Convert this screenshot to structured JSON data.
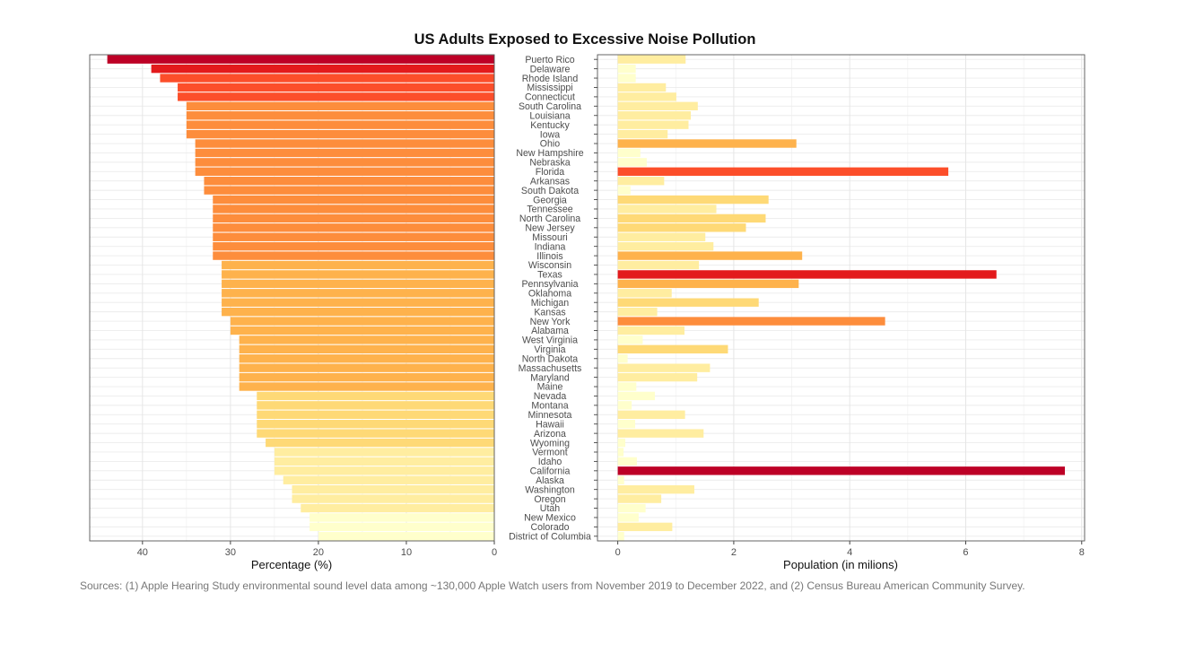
{
  "chart_data": {
    "title": "US Adults Exposed to Excessive Noise Pollution",
    "caption": "Sources: (1) Apple Hearing Study environmental sound level data among ~130,000 Apple Watch users from November 2019 to December 2022, and (2) Census Bureau American Community Survey.",
    "colors": [
      "#ffffcc",
      "#ffeda0",
      "#fed976",
      "#feb24c",
      "#fd8d3c",
      "#fc4e2a",
      "#e31a1c",
      "#bd0026"
    ],
    "categories": [
      "Puerto Rico",
      "Delaware",
      "Rhode Island",
      "Mississippi",
      "Connecticut",
      "South Carolina",
      "Louisiana",
      "Kentucky",
      "Iowa",
      "Ohio",
      "New Hampshire",
      "Nebraska",
      "Florida",
      "Arkansas",
      "South Dakota",
      "Georgia",
      "Tennessee",
      "North Carolina",
      "New Jersey",
      "Missouri",
      "Indiana",
      "Illinois",
      "Wisconsin",
      "Texas",
      "Pennsylvania",
      "Oklahoma",
      "Michigan",
      "Kansas",
      "New York",
      "Alabama",
      "West Virginia",
      "Virginia",
      "North Dakota",
      "Massachusetts",
      "Maryland",
      "Maine",
      "Nevada",
      "Montana",
      "Minnesota",
      "Hawaii",
      "Arizona",
      "Wyoming",
      "Vermont",
      "Idaho",
      "California",
      "Alaska",
      "Washington",
      "Oregon",
      "Utah",
      "New Mexico",
      "Colorado",
      "District of Columbia"
    ],
    "charts": [
      {
        "type": "bar",
        "orientation": "horizontal",
        "reversed_x": true,
        "xlabel": "Percentage (%)",
        "xlim": [
          46,
          0
        ],
        "xticks": [
          "40",
          "30",
          "20",
          "10",
          "0"
        ],
        "xtick_values": [
          40,
          30,
          20,
          10,
          0
        ],
        "series": [
          {
            "values": [
              44,
              39,
              38,
              36,
              36,
              35,
              35,
              35,
              35,
              34,
              34,
              34,
              34,
              33,
              33,
              32,
              32,
              32,
              32,
              32,
              32,
              32,
              31,
              31,
              31,
              31,
              31,
              31,
              30,
              30,
              29,
              29,
              29,
              29,
              29,
              29,
              27,
              27,
              27,
              27,
              27,
              26,
              25,
              25,
              25,
              24,
              23,
              23,
              22,
              21,
              21,
              20
            ]
          }
        ]
      },
      {
        "type": "bar",
        "orientation": "horizontal",
        "xlabel": "Population (in milions)",
        "xlim": [
          -0.35,
          8.05
        ],
        "xticks": [
          "0",
          "2",
          "4",
          "6",
          "8"
        ],
        "xtick_values": [
          0,
          2,
          4,
          6,
          8
        ],
        "series": [
          {
            "values": [
              1.17,
              0.31,
              0.31,
              0.83,
              1.01,
              1.38,
              1.26,
              1.22,
              0.86,
              3.08,
              0.39,
              0.5,
              5.7,
              0.8,
              0.22,
              2.6,
              1.7,
              2.55,
              2.21,
              1.51,
              1.65,
              3.18,
              1.4,
              6.53,
              3.12,
              0.93,
              2.43,
              0.68,
              4.61,
              1.15,
              0.43,
              1.9,
              0.17,
              1.59,
              1.37,
              0.32,
              0.64,
              0.24,
              1.16,
              0.3,
              1.48,
              0.13,
              0.1,
              0.33,
              7.71,
              0.11,
              1.32,
              0.75,
              0.48,
              0.36,
              0.94,
              0.11
            ]
          }
        ]
      }
    ]
  }
}
